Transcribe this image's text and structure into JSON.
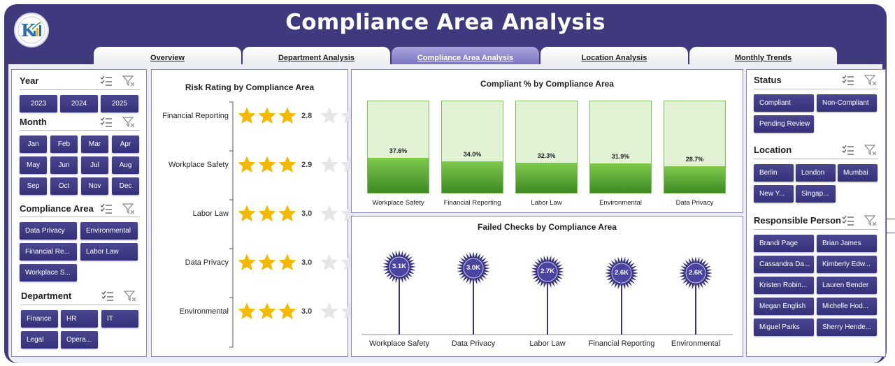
{
  "title": "Compliance Area Analysis",
  "tabs": [
    "Overview",
    "Department Analysis",
    "Compliance Area Analysis",
    "Location Analysis",
    "Monthly Trends"
  ],
  "active_tab": 2,
  "left_slicers": {
    "year": {
      "title": "Year",
      "items": [
        "2023",
        "2024",
        "2025"
      ]
    },
    "month": {
      "title": "Month",
      "items": [
        "Jan",
        "Feb",
        "Mar",
        "Apr",
        "May",
        "Jun",
        "Jul",
        "Aug",
        "Sep",
        "Oct",
        "Nov",
        "Dec"
      ]
    },
    "compliance_area": {
      "title": "Compliance Area",
      "items": [
        "Data Privacy",
        "Environmental",
        "Financial Re...",
        "Labor Law",
        "Workplace S..."
      ]
    },
    "department": {
      "title": "Department",
      "items": [
        "Finance",
        "HR",
        "IT",
        "Legal",
        "Opera..."
      ]
    }
  },
  "right_slicers": {
    "status": {
      "title": "Status",
      "items": [
        "Compliant",
        "Non-Compliant",
        "Pending Review"
      ]
    },
    "location": {
      "title": "Location",
      "items": [
        "Berlin",
        "London",
        "Mumbai",
        "New Y...",
        "Singap..."
      ]
    },
    "responsible_person": {
      "title": "Responsible Person",
      "items": [
        "Brandi Page",
        "Brian James",
        "Cassandra Da...",
        "Kimberly Edw...",
        "Kristen Robin...",
        "Lauren Bender",
        "Megan English",
        "Michelle Hod...",
        "Miguel Parks",
        "Sherry Hende..."
      ]
    }
  },
  "chart_data": [
    {
      "type": "bar",
      "title": "Risk Rating by Compliance Area",
      "categories": [
        "Financial Reporting",
        "Workplace Safety",
        "Labor Law",
        "Data Privacy",
        "Environmental"
      ],
      "values": [
        2.8,
        2.9,
        3.0,
        3.0,
        3.0
      ],
      "value_labels": [
        "2.8",
        "2.9",
        "3.0",
        "3.0",
        "3.0"
      ],
      "max_stars": 5,
      "style": "star-rating"
    },
    {
      "type": "bar",
      "title": "Compliant % by Compliance Area",
      "categories": [
        "Workplace Safety",
        "Financial Reporting",
        "Labor Law",
        "Environmental",
        "Data Privacy"
      ],
      "values": [
        37.6,
        34.0,
        32.3,
        31.9,
        28.7
      ],
      "value_labels": [
        "37.6%",
        "34.0%",
        "32.3%",
        "31.9%",
        "28.7%"
      ],
      "ylim": [
        0,
        100
      ]
    },
    {
      "type": "bar",
      "title": "Failed Checks by Compliance Area",
      "categories": [
        "Workplace Safety",
        "Data Privacy",
        "Labor Law",
        "Financial Reporting",
        "Environmental"
      ],
      "values": [
        3100,
        3000,
        2700,
        2600,
        2600
      ],
      "value_labels": [
        "3.1K",
        "3.0K",
        "2.7K",
        "2.6K",
        "2.6K"
      ],
      "style": "lollipop"
    }
  ],
  "colors": {
    "frame": "#3f3a7d",
    "slicer_button": "#3f3a86",
    "star": "#f5b800",
    "star_empty": "#e6e6e6",
    "bar_fill": "#6bb83e",
    "bar_bg": "#e1f2d5",
    "lollipop": "#38347e"
  }
}
